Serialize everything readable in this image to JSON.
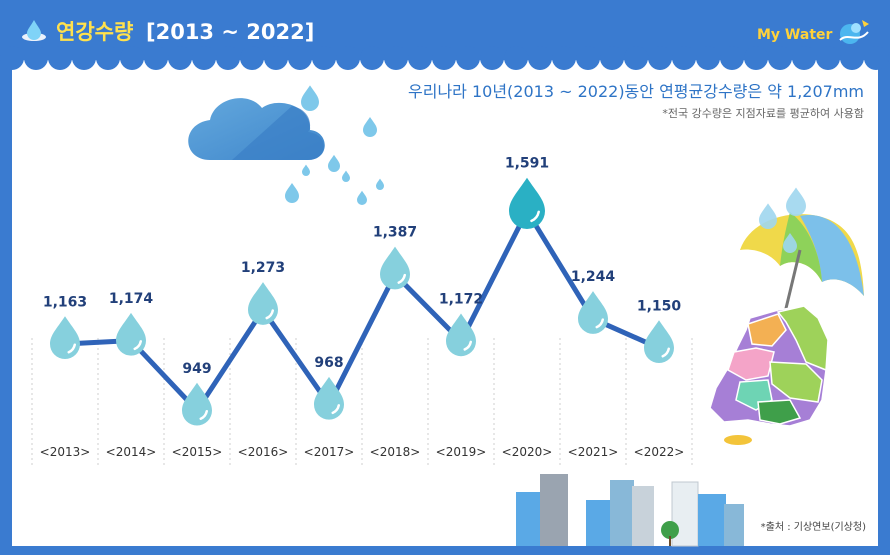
{
  "header": {
    "title": "연강수량",
    "range": "[2013 ~ 2022]",
    "brand": "My Water"
  },
  "headline": "우리나라 10년(2013 ~ 2022)동안 연평균강수량은 약 1,207mm",
  "note": "*전국 강수량은 지점자료를 평균하여 사용함",
  "source": "*출처 : 기상연보(기상청)",
  "colors": {
    "background": "#3a7bd0",
    "line": "#2f63b8",
    "drop": "#86d0dd",
    "drop_highlight": "#2ab0c4",
    "headline": "#2e74c6",
    "title": "#ffe14d"
  },
  "icons": {
    "header": "water-drop-icon",
    "brand": "water-splash-icon",
    "markers": "raindrop-marker",
    "cloud": "rain-cloud-illustration",
    "map": "korea-map-umbrella-illustration",
    "skyline": "city-buildings-illustration"
  },
  "chart_data": {
    "type": "line",
    "title": "연강수량",
    "unit": "mm",
    "categories": [
      "2013",
      "2014",
      "2015",
      "2016",
      "2017",
      "2018",
      "2019",
      "2020",
      "2021",
      "2022"
    ],
    "tick_labels": [
      "<2013>",
      "<2014>",
      "<2015>",
      "<2016>",
      "<2017>",
      "<2018>",
      "<2019>",
      "<2020>",
      "<2021>",
      "<2022>"
    ],
    "values": [
      1163,
      1174,
      949,
      1273,
      968,
      1387,
      1172,
      1591,
      1244,
      1150
    ],
    "value_labels": [
      "1,163",
      "1,174",
      "949",
      "1,273",
      "968",
      "1,387",
      "1,172",
      "1,591",
      "1,244",
      "1,150"
    ],
    "highlight": "2020",
    "average": 1207,
    "grid": "vertical-dotted",
    "legend": "none"
  }
}
